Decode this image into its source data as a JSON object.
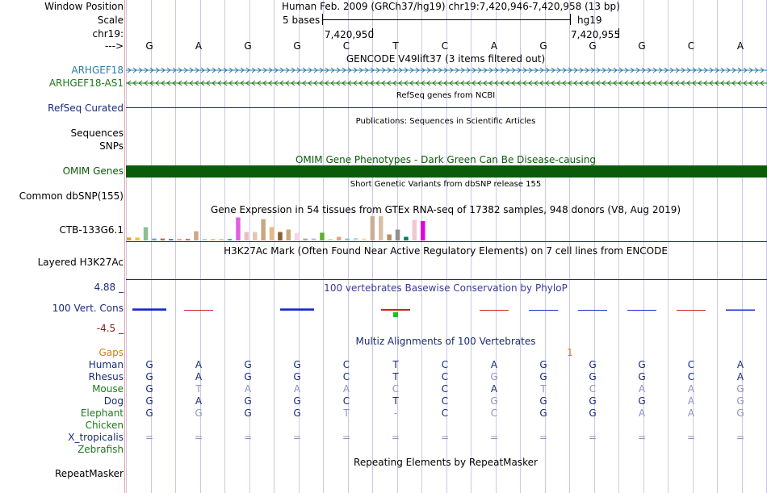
{
  "position": {
    "label": "Window Position",
    "value": "Human Feb. 2009 (GRCh37/hg19)   chr19:7,420,946-7,420,958 (13 bp)"
  },
  "scale": {
    "label": "Scale",
    "bases": "5 bases",
    "assembly": "hg19"
  },
  "ruler": {
    "label": "chr19:",
    "left_coord": "7,420,950",
    "right_coord": "7,420,955"
  },
  "strand": {
    "label": "--->",
    "bases": [
      "G",
      "A",
      "G",
      "G",
      "C",
      "T",
      "C",
      "A",
      "G",
      "G",
      "G",
      "C",
      "A"
    ]
  },
  "gencode": {
    "title": "GENCODE V49lift37 (3 items filtered out)",
    "genes": [
      {
        "name": "ARHGEF18",
        "color": "#2a7aa8",
        "arrow": ">"
      },
      {
        "name": "ARHGEF18-AS1",
        "color": "#1b7a1b",
        "arrow": "<"
      }
    ]
  },
  "refseq": {
    "label": "RefSeq Curated",
    "desc": "RefSeq genes from NCBI",
    "color": "#1a2a7a"
  },
  "publications": {
    "desc": "Publications: Sequences in Scientific Articles",
    "labels": [
      "Sequences",
      "SNPs"
    ]
  },
  "omim": {
    "title": "OMIM Gene Phenotypes - Dark Green Can Be Disease-causing",
    "label": "OMIM Genes",
    "color": "#0a5c0a"
  },
  "dbsnp": {
    "label": "Common dbSNP(155)",
    "desc": "Short Genetic Variants from dbSNP release 155"
  },
  "gtex": {
    "title": "Gene Expression in 54 tissues from GTEx RNA-seq of 17382 samples, 948 donors (V8, Aug 2019)",
    "label": "CTB-133G6.1",
    "bars": [
      {
        "h": 0.12,
        "c": "#e0a030"
      },
      {
        "h": 0.12,
        "c": "#f0c040"
      },
      {
        "h": 0.55,
        "c": "#8fbf8f"
      },
      {
        "h": 0.08,
        "c": "#6aa2c8"
      },
      {
        "h": 0.08,
        "c": "#c07040"
      },
      {
        "h": 0.06,
        "c": "#4a7fd8"
      },
      {
        "h": 0.06,
        "c": "#f0a0a0"
      },
      {
        "h": 0.07,
        "c": "#c08060"
      },
      {
        "h": 0.38,
        "c": "#caa888"
      },
      {
        "h": 0.05,
        "c": "#a0d0ff"
      },
      {
        "h": 0.06,
        "c": "#e0d060"
      },
      {
        "h": 0.06,
        "c": "#f0c0a0"
      },
      {
        "h": 0.05,
        "c": "#40c080"
      },
      {
        "h": 0.95,
        "c": "#e060e0"
      },
      {
        "h": 0.35,
        "c": "#e8c0c0"
      },
      {
        "h": 0.35,
        "c": "#e0c8b0"
      },
      {
        "h": 0.88,
        "c": "#c8a880"
      },
      {
        "h": 0.55,
        "c": "#e8b880"
      },
      {
        "h": 0.35,
        "c": "#8b6030"
      },
      {
        "h": 0.45,
        "c": "#caa878"
      },
      {
        "h": 0.3,
        "c": "#ffd0e0"
      },
      {
        "h": 0.08,
        "c": "#aaaaaa"
      },
      {
        "h": 0.08,
        "c": "#d0b0f0"
      },
      {
        "h": 0.32,
        "c": "#60b030"
      },
      {
        "h": 0.06,
        "c": "#c0f0a0"
      },
      {
        "h": 0.15,
        "c": "#f0a080"
      },
      {
        "h": 0.08,
        "c": "#80c0f0"
      },
      {
        "h": 0.1,
        "c": "#b0e0e0"
      },
      {
        "h": 0.08,
        "c": "#f0e0a0"
      },
      {
        "h": 1.0,
        "c": "#c8b098"
      },
      {
        "h": 1.0,
        "c": "#d8c0a8"
      },
      {
        "h": 0.25,
        "c": "#b09070"
      },
      {
        "h": 0.45,
        "c": "#909090"
      },
      {
        "h": 0.15,
        "c": "#008060"
      },
      {
        "h": 0.85,
        "c": "#f0c8d0"
      },
      {
        "h": 0.8,
        "c": "#e000e0"
      }
    ]
  },
  "h3k27ac": {
    "title": "H3K27Ac Mark (Often Found Near Active Regulatory Elements) on 7 cell lines from ENCODE",
    "label": "Layered H3K27Ac"
  },
  "conservation": {
    "title": "100 vertebrates Basewise Conservation by PhyloP",
    "label": "100 Vert. Cons",
    "ymax": "4.88 _",
    "ymin": "-4.5 _"
  },
  "multiz": {
    "title": "Multiz Alignments of 100 Vertebrates",
    "gaps_label": "Gaps",
    "gap_marker": "1",
    "species": [
      {
        "name": "Human",
        "color": "#1a2a7a",
        "bases": [
          "G",
          "A",
          "G",
          "G",
          "C",
          "T",
          "C",
          "A",
          "G",
          "G",
          "G",
          "C",
          "A"
        ],
        "conserved": [
          1,
          1,
          1,
          1,
          1,
          1,
          1,
          1,
          1,
          1,
          1,
          1,
          1
        ]
      },
      {
        "name": "Rhesus",
        "color": "#1a2a7a",
        "bases": [
          "G",
          "A",
          "G",
          "G",
          "C",
          "T",
          "C",
          "G",
          "G",
          "G",
          "G",
          "C",
          "A"
        ],
        "conserved": [
          1,
          1,
          1,
          1,
          1,
          1,
          1,
          0,
          1,
          1,
          1,
          1,
          1
        ]
      },
      {
        "name": "Mouse",
        "color": "#1b7a1b",
        "bases": [
          "G",
          "T",
          "A",
          "A",
          "A",
          "C",
          "C",
          "A",
          "T",
          "C",
          "A",
          "A",
          "G"
        ],
        "conserved": [
          1,
          0,
          0,
          0,
          0,
          0,
          1,
          1,
          0,
          0,
          0,
          0,
          0
        ]
      },
      {
        "name": "Dog",
        "color": "#1a2a7a",
        "bases": [
          "G",
          "A",
          "G",
          "G",
          "C",
          "T",
          "C",
          "G",
          "G",
          "G",
          "G",
          "A",
          "G"
        ],
        "conserved": [
          1,
          1,
          1,
          1,
          1,
          1,
          1,
          0,
          1,
          1,
          1,
          0,
          0
        ]
      },
      {
        "name": "Elephant",
        "color": "#1b7a1b",
        "bases": [
          "G",
          "G",
          "G",
          "G",
          "T",
          "-",
          "C",
          "C",
          "G",
          "G",
          "A",
          "A",
          "G"
        ],
        "conserved": [
          1,
          0,
          1,
          1,
          0,
          0,
          1,
          0,
          1,
          1,
          0,
          0,
          0
        ]
      },
      {
        "name": "Chicken",
        "color": "#1b7a1b",
        "bases": [
          "",
          "",
          "",
          "",
          "",
          "",
          "",
          "",
          "",
          "",
          "",
          "",
          ""
        ],
        "conserved": [
          0,
          0,
          0,
          0,
          0,
          0,
          0,
          0,
          0,
          0,
          0,
          0,
          0
        ]
      },
      {
        "name": "X_tropicalis",
        "color": "#1a2a7a",
        "bases": [
          "=",
          "=",
          "=",
          "=",
          "=",
          "=",
          "=",
          "=",
          "=",
          "=",
          "=",
          "=",
          "="
        ],
        "conserved": [
          0,
          0,
          0,
          0,
          0,
          0,
          0,
          0,
          0,
          0,
          0,
          0,
          0
        ]
      },
      {
        "name": "Zebrafish",
        "color": "#1b7a1b",
        "bases": [
          "",
          "",
          "",
          "",
          "",
          "",
          "",
          "",
          "",
          "",
          "",
          "",
          ""
        ],
        "conserved": [
          0,
          0,
          0,
          0,
          0,
          0,
          0,
          0,
          0,
          0,
          0,
          0,
          0
        ]
      }
    ]
  },
  "repeatmasker": {
    "title": "Repeating Elements by RepeatMasker",
    "label": "RepeatMasker"
  },
  "colors": {
    "conserved": "#1a2a7a",
    "unconserved": "#9090c0",
    "phylop_pos": "#1a2ad0",
    "phylop_neg": "#d02020"
  }
}
